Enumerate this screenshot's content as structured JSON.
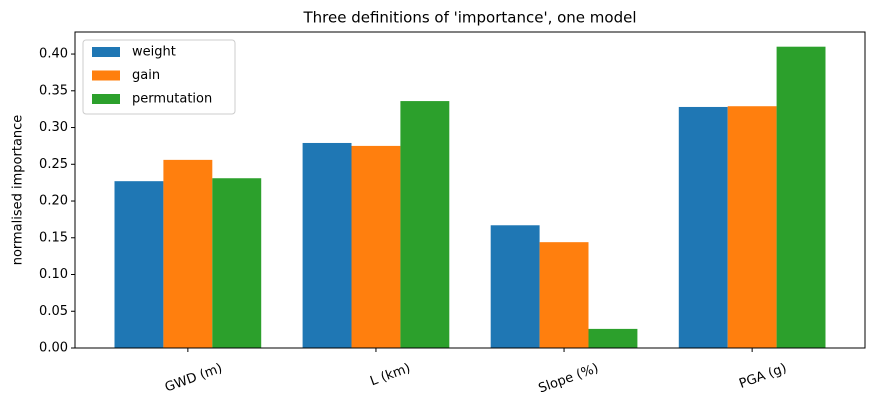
{
  "chart_data": {
    "type": "bar",
    "title": "Three definitions of 'importance', one model",
    "y_label": "normalised importance",
    "categories": [
      "GWD (m)",
      "L (km)",
      "Slope (%)",
      "PGA (g)"
    ],
    "series": [
      {
        "name": "weight",
        "color": "#1f77b4",
        "values": [
          0.227,
          0.279,
          0.167,
          0.328
        ]
      },
      {
        "name": "gain",
        "color": "#ff7f0e",
        "values": [
          0.256,
          0.275,
          0.144,
          0.329
        ]
      },
      {
        "name": "permutation",
        "color": "#2ca02c",
        "values": [
          0.231,
          0.336,
          0.026,
          0.41
        ]
      }
    ],
    "ylim": [
      0,
      0.43
    ],
    "yticks": [
      {
        "value": 0,
        "label": "0.00"
      },
      {
        "value": 0.05,
        "label": "0.05"
      },
      {
        "value": 0.1,
        "label": "0.10"
      },
      {
        "value": 0.15,
        "label": "0.15"
      },
      {
        "value": 0.2,
        "label": "0.20"
      },
      {
        "value": 0.25,
        "label": "0.25"
      },
      {
        "value": 0.3,
        "label": "0.30"
      },
      {
        "value": 0.35,
        "label": "0.35"
      },
      {
        "value": 0.4,
        "label": "0.40"
      }
    ],
    "legend": "upper left"
  }
}
